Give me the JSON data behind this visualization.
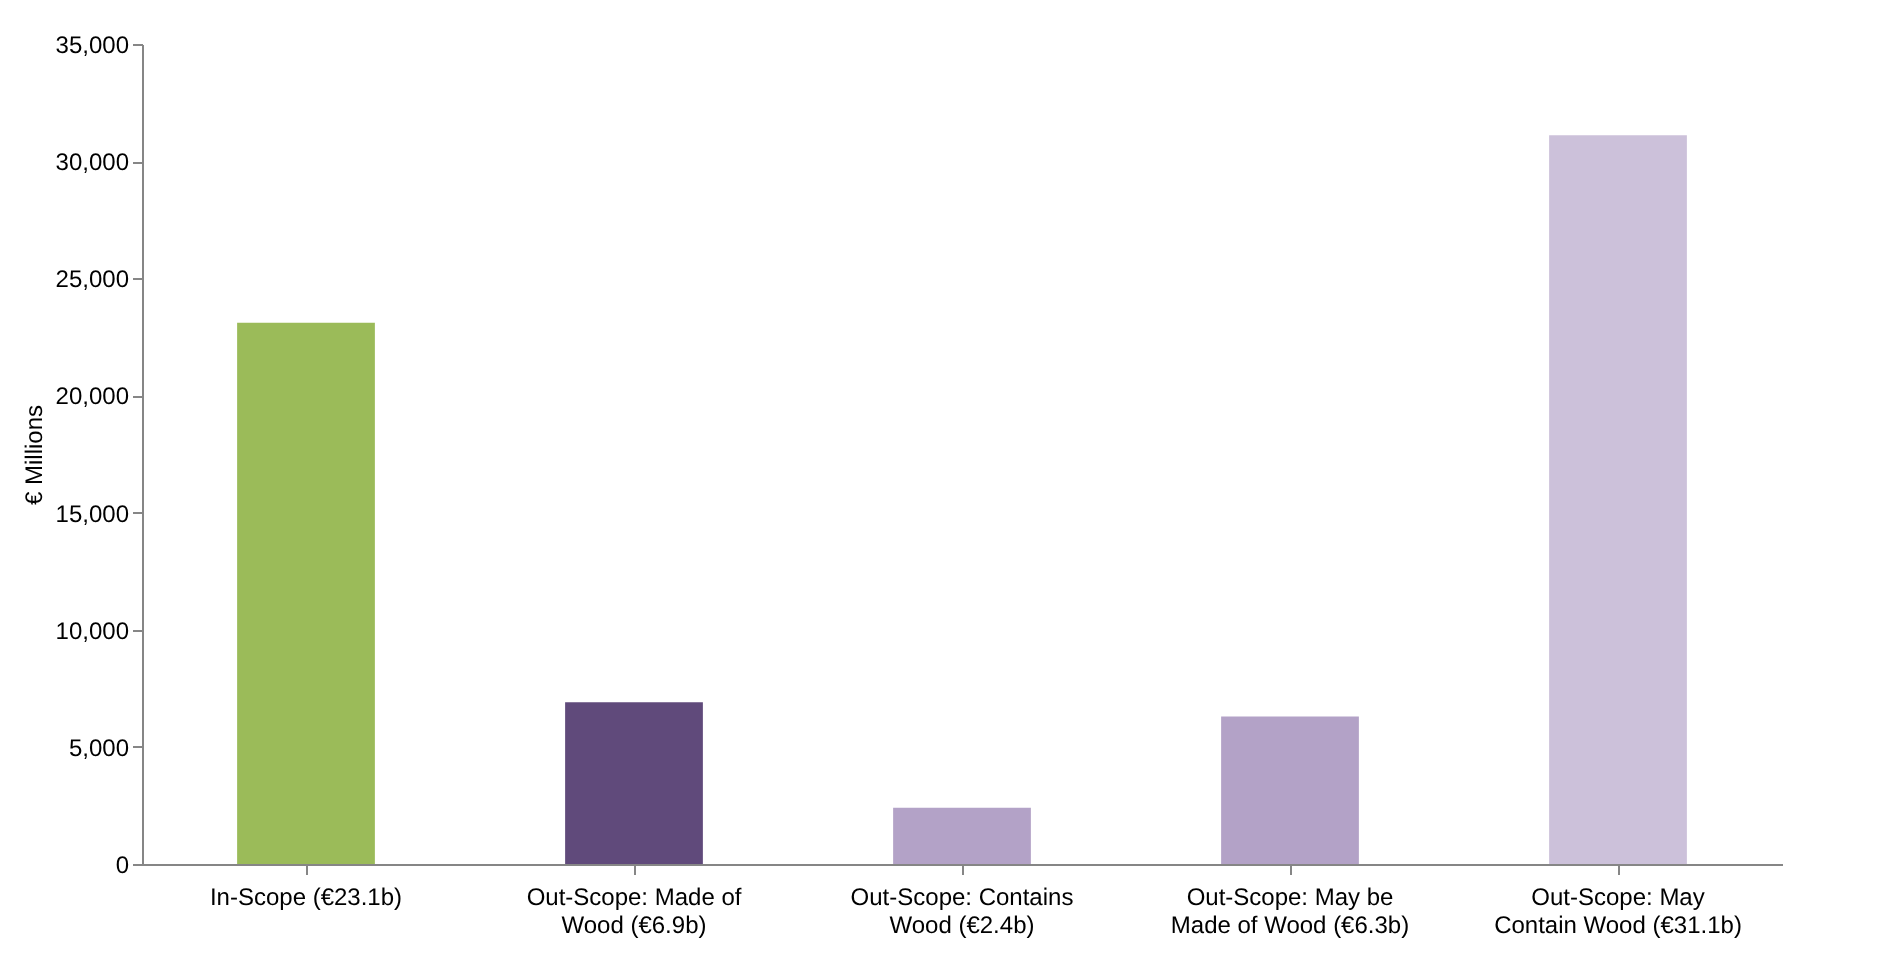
{
  "chart_data": {
    "type": "bar",
    "ylabel": "€ Millions",
    "categories": [
      "In-Scope (€23.1b)",
      "Out-Scope: Made of Wood (€6.9b)",
      "Out-Scope: Contains Wood (€2.4b)",
      "Out-Scope: May be Made of Wood (€6.3b)",
      "Out-Scope: May Contain Wood (€31.1b)"
    ],
    "values": [
      23100,
      6900,
      2400,
      6300,
      31100
    ],
    "colors": [
      "#9bbb59",
      "#604a7b",
      "#b3a2c7",
      "#b3a2c7",
      "#ccc1da"
    ],
    "ylim": [
      0,
      35000
    ],
    "yticks": [
      0,
      {
        "value": 5000,
        "label": "5,000"
      },
      {
        "value": 10000,
        "label": "10,000"
      },
      {
        "value": 15000,
        "label": "15,000"
      },
      {
        "value": 20000,
        "label": "20,000"
      },
      {
        "value": 25000,
        "label": "25,000"
      },
      {
        "value": 30000,
        "label": "30,000"
      },
      {
        "value": 35000,
        "label": "35,000"
      }
    ],
    "grid": false,
    "legend": false
  }
}
